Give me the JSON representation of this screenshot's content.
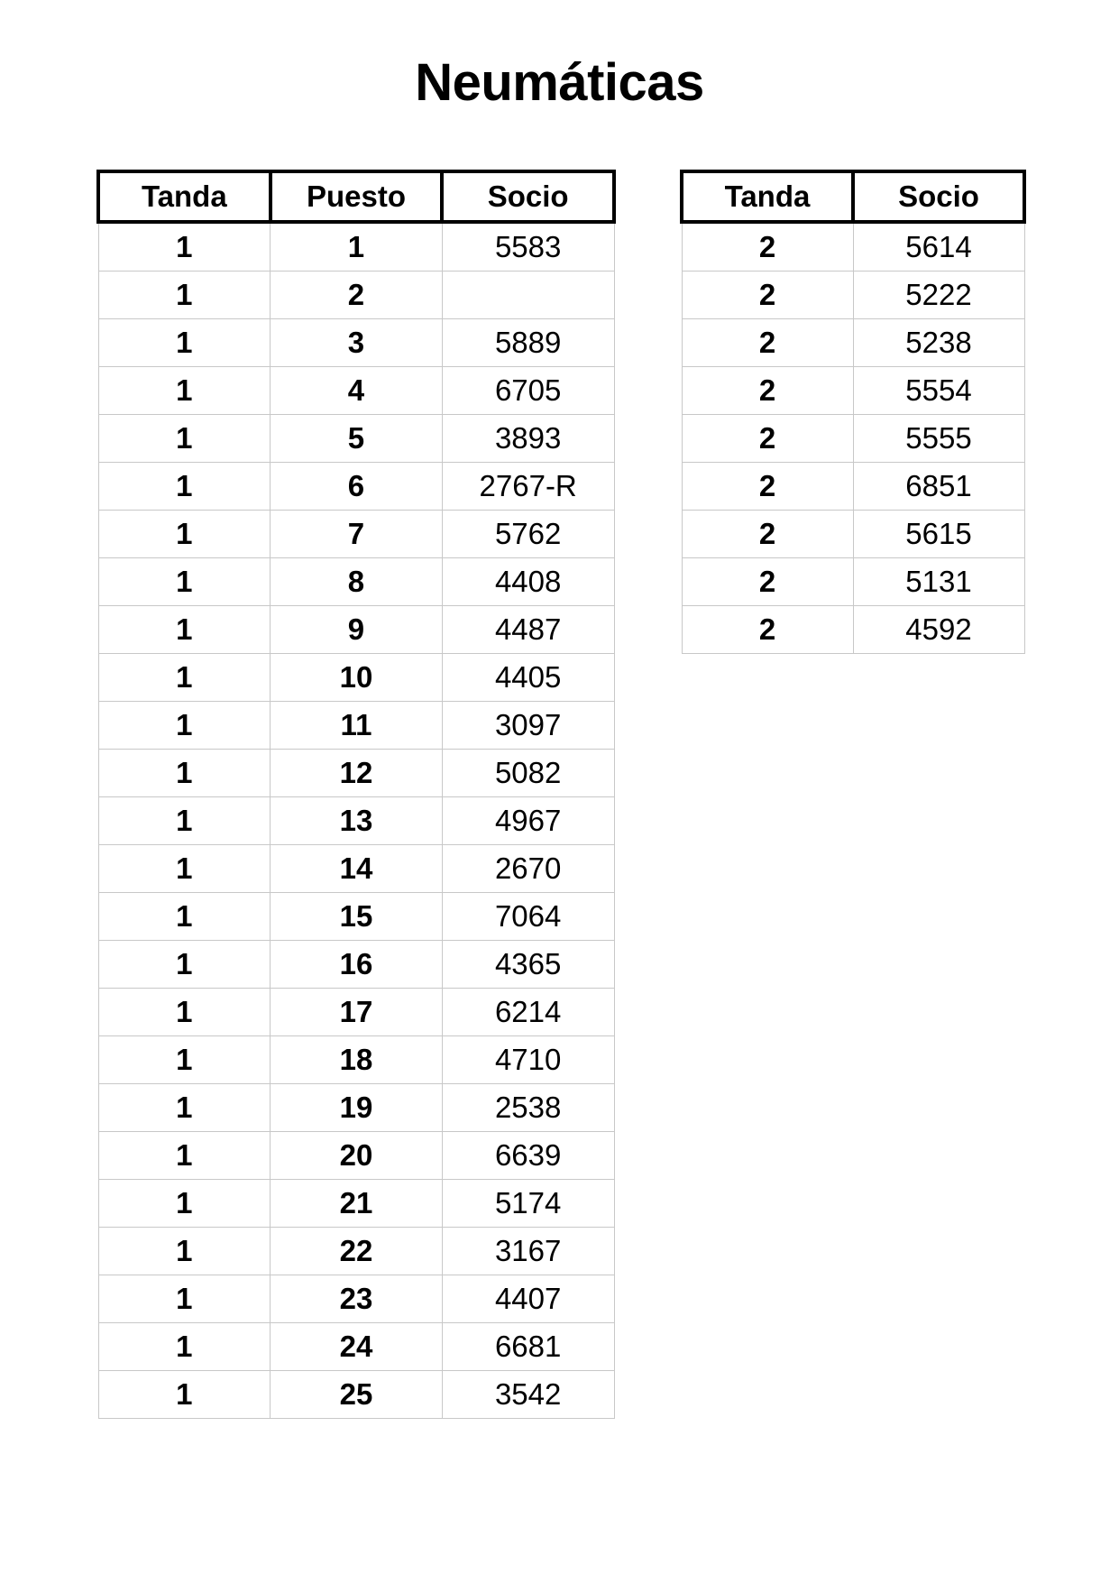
{
  "title": "Neumáticas",
  "table1": {
    "headers": [
      "Tanda",
      "Puesto",
      "Socio"
    ],
    "rows": [
      [
        "1",
        "1",
        "5583"
      ],
      [
        "1",
        "2",
        ""
      ],
      [
        "1",
        "3",
        "5889"
      ],
      [
        "1",
        "4",
        "6705"
      ],
      [
        "1",
        "5",
        "3893"
      ],
      [
        "1",
        "6",
        "2767-R"
      ],
      [
        "1",
        "7",
        "5762"
      ],
      [
        "1",
        "8",
        "4408"
      ],
      [
        "1",
        "9",
        "4487"
      ],
      [
        "1",
        "10",
        "4405"
      ],
      [
        "1",
        "11",
        "3097"
      ],
      [
        "1",
        "12",
        "5082"
      ],
      [
        "1",
        "13",
        "4967"
      ],
      [
        "1",
        "14",
        "2670"
      ],
      [
        "1",
        "15",
        "7064"
      ],
      [
        "1",
        "16",
        "4365"
      ],
      [
        "1",
        "17",
        "6214"
      ],
      [
        "1",
        "18",
        "4710"
      ],
      [
        "1",
        "19",
        "2538"
      ],
      [
        "1",
        "20",
        "6639"
      ],
      [
        "1",
        "21",
        "5174"
      ],
      [
        "1",
        "22",
        "3167"
      ],
      [
        "1",
        "23",
        "4407"
      ],
      [
        "1",
        "24",
        "6681"
      ],
      [
        "1",
        "25",
        "3542"
      ]
    ]
  },
  "table2": {
    "headers": [
      "Tanda",
      "Socio"
    ],
    "rows": [
      [
        "2",
        "5614"
      ],
      [
        "2",
        "5222"
      ],
      [
        "2",
        "5238"
      ],
      [
        "2",
        "5554"
      ],
      [
        "2",
        "5555"
      ],
      [
        "2",
        "6851"
      ],
      [
        "2",
        "5615"
      ],
      [
        "2",
        "5131"
      ],
      [
        "2",
        "4592"
      ]
    ]
  }
}
